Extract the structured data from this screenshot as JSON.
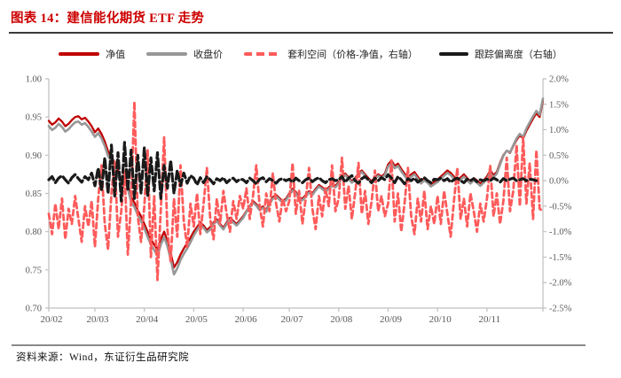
{
  "header": {
    "title": "图表 14：建信能化期货 ETF 走势"
  },
  "footer": {
    "source": "资料来源：Wind，东证衍生品研究院"
  },
  "legend": {
    "items": [
      {
        "label": "净值",
        "color": "#c00000",
        "style": "solid"
      },
      {
        "label": "收盘价",
        "color": "#979797",
        "style": "solid"
      },
      {
        "label": "套利空间（价格-净值，右轴）",
        "color": "#ff5b5b",
        "style": "dashed"
      },
      {
        "label": "跟踪偏离度（右轴）",
        "color": "#1a1a1a",
        "style": "solid"
      }
    ]
  },
  "chart_data": {
    "type": "line",
    "title": "建信能化期货 ETF 走势",
    "n_points": 151,
    "x_range_note": "2020-02 through early 2020-12, daily",
    "x_tick_labels": [
      "20/02",
      "20/03",
      "20/04",
      "20/05",
      "20/06",
      "20/07",
      "20/08",
      "20/09",
      "20/10",
      "20/11"
    ],
    "x_tick_index": [
      0,
      14,
      29,
      44,
      59,
      73,
      88,
      103,
      118,
      133
    ],
    "left_axis": {
      "min": 0.7,
      "max": 1.0,
      "tick_values": [
        1.0,
        0.95,
        0.9,
        0.85,
        0.8,
        0.75,
        0.7
      ],
      "tick_labels": [
        "1.00",
        "0.95",
        "0.90",
        "0.85",
        "0.80",
        "0.75",
        "0.70"
      ]
    },
    "right_axis": {
      "min": -2.5,
      "max": 2.0,
      "tick_values": [
        2.0,
        1.5,
        1.0,
        0.5,
        0.0,
        -0.5,
        -1.0,
        -1.5,
        -2.0,
        -2.5
      ],
      "tick_labels": [
        "2.0%",
        "1.5%",
        "1.0%",
        "0.5%",
        "0.0%",
        "-0.5%",
        "-1.0%",
        "-1.5%",
        "-2.0%",
        "-2.5%"
      ]
    },
    "grid": false,
    "legend_position": "top-center",
    "series": [
      {
        "name": "净值",
        "axis": "left",
        "color": "#c00000",
        "style": "solid",
        "width": 2.3,
        "values": [
          0.945,
          0.94,
          0.943,
          0.948,
          0.944,
          0.938,
          0.941,
          0.946,
          0.95,
          0.951,
          0.947,
          0.949,
          0.944,
          0.938,
          0.93,
          0.935,
          0.928,
          0.918,
          0.905,
          0.898,
          0.89,
          0.88,
          0.868,
          0.873,
          0.862,
          0.845,
          0.838,
          0.828,
          0.82,
          0.81,
          0.8,
          0.79,
          0.783,
          0.776,
          0.79,
          0.8,
          0.788,
          0.772,
          0.753,
          0.76,
          0.77,
          0.778,
          0.785,
          0.792,
          0.8,
          0.806,
          0.812,
          0.808,
          0.802,
          0.806,
          0.812,
          0.816,
          0.81,
          0.805,
          0.812,
          0.818,
          0.814,
          0.81,
          0.815,
          0.82,
          0.827,
          0.833,
          0.84,
          0.836,
          0.83,
          0.833,
          0.828,
          0.838,
          0.845,
          0.848,
          0.844,
          0.84,
          0.843,
          0.85,
          0.856,
          0.852,
          0.845,
          0.843,
          0.848,
          0.853,
          0.85,
          0.856,
          0.861,
          0.858,
          0.854,
          0.858,
          0.862,
          0.86,
          0.865,
          0.872,
          0.876,
          0.871,
          0.866,
          0.87,
          0.876,
          0.88,
          0.875,
          0.87,
          0.866,
          0.871,
          0.875,
          0.872,
          0.876,
          0.888,
          0.893,
          0.886,
          0.889,
          0.882,
          0.876,
          0.871,
          0.875,
          0.878,
          0.872,
          0.866,
          0.87,
          0.867,
          0.862,
          0.865,
          0.868,
          0.872,
          0.876,
          0.88,
          0.877,
          0.872,
          0.868,
          0.871,
          0.875,
          0.87,
          0.866,
          0.87,
          0.867,
          0.863,
          0.867,
          0.872,
          0.88,
          0.874,
          0.878,
          0.89,
          0.9,
          0.906,
          0.903,
          0.912,
          0.92,
          0.926,
          0.922,
          0.932,
          0.94,
          0.948,
          0.955,
          0.95,
          0.971
        ]
      },
      {
        "name": "收盘价",
        "axis": "left",
        "color": "#979797",
        "style": "solid",
        "width": 2.6,
        "values": [
          0.938,
          0.933,
          0.936,
          0.941,
          0.937,
          0.931,
          0.934,
          0.939,
          0.943,
          0.944,
          0.94,
          0.942,
          0.937,
          0.931,
          0.924,
          0.929,
          0.922,
          0.912,
          0.899,
          0.892,
          0.884,
          0.874,
          0.862,
          0.867,
          0.856,
          0.839,
          0.832,
          0.822,
          0.814,
          0.804,
          0.793,
          0.783,
          0.776,
          0.768,
          0.783,
          0.793,
          0.781,
          0.764,
          0.744,
          0.752,
          0.763,
          0.771,
          0.778,
          0.786,
          0.795,
          0.802,
          0.809,
          0.805,
          0.799,
          0.803,
          0.81,
          0.814,
          0.808,
          0.803,
          0.81,
          0.816,
          0.812,
          0.808,
          0.813,
          0.818,
          0.826,
          0.832,
          0.838,
          0.834,
          0.828,
          0.831,
          0.826,
          0.836,
          0.843,
          0.846,
          0.842,
          0.838,
          0.841,
          0.848,
          0.854,
          0.85,
          0.843,
          0.841,
          0.846,
          0.851,
          0.848,
          0.854,
          0.859,
          0.856,
          0.852,
          0.856,
          0.86,
          0.858,
          0.863,
          0.87,
          0.874,
          0.869,
          0.864,
          0.868,
          0.874,
          0.878,
          0.873,
          0.868,
          0.864,
          0.869,
          0.873,
          0.87,
          0.874,
          0.885,
          0.89,
          0.883,
          0.886,
          0.879,
          0.873,
          0.868,
          0.872,
          0.875,
          0.869,
          0.863,
          0.867,
          0.864,
          0.859,
          0.862,
          0.865,
          0.869,
          0.873,
          0.877,
          0.874,
          0.869,
          0.865,
          0.868,
          0.872,
          0.867,
          0.863,
          0.867,
          0.864,
          0.86,
          0.864,
          0.869,
          0.877,
          0.871,
          0.876,
          0.888,
          0.899,
          0.906,
          0.904,
          0.913,
          0.922,
          0.928,
          0.924,
          0.935,
          0.943,
          0.951,
          0.958,
          0.953,
          0.974
        ]
      },
      {
        "name": "套利空间（价格-净值，右轴）",
        "axis": "right",
        "color": "#ff5b5b",
        "style": "dashed",
        "width": 2.8,
        "values": [
          -0.65,
          -1.05,
          -0.45,
          -0.95,
          -0.35,
          -1.15,
          -0.55,
          -0.85,
          -0.3,
          -0.75,
          -1.2,
          -0.5,
          -0.9,
          -0.4,
          -1.3,
          -0.35,
          0.3,
          -0.85,
          -1.35,
          -0.25,
          0.4,
          -1.1,
          -0.6,
          0.2,
          -1.45,
          -0.4,
          1.55,
          -0.7,
          -1.2,
          -0.5,
          0.6,
          -1.5,
          -0.3,
          -1.95,
          -0.55,
          0.85,
          -0.95,
          -1.6,
          -0.35,
          -1.1,
          0.3,
          -0.8,
          -1.3,
          -0.45,
          -0.9,
          -0.25,
          -1.05,
          -0.45,
          0.25,
          -0.75,
          -1.15,
          -0.35,
          -0.85,
          -0.2,
          -0.65,
          -1.0,
          -0.4,
          -0.75,
          -0.3,
          -0.55,
          -0.15,
          -0.75,
          -0.3,
          0.3,
          -0.5,
          -0.9,
          -0.25,
          -0.6,
          0.15,
          -0.45,
          -0.8,
          -0.35,
          -0.6,
          -0.4,
          0.35,
          -0.65,
          -0.2,
          -0.85,
          -0.35,
          0.25,
          -0.55,
          -0.95,
          -0.3,
          -0.7,
          -0.15,
          -0.5,
          0.3,
          -0.6,
          -0.35,
          0.45,
          -0.55,
          -0.1,
          -0.75,
          -0.25,
          0.35,
          -0.65,
          -0.2,
          -0.85,
          -0.4,
          0.2,
          -0.6,
          -0.3,
          -0.7,
          -0.45,
          0.4,
          -0.8,
          -0.25,
          -1.0,
          -0.45,
          0.25,
          -0.7,
          -1.05,
          -0.35,
          -0.8,
          -0.2,
          -0.95,
          -0.5,
          -0.85,
          -0.3,
          -0.85,
          -0.2,
          -0.65,
          -1.1,
          -0.4,
          0.25,
          -0.75,
          -0.35,
          -0.9,
          -0.25,
          -0.6,
          -1.0,
          -0.45,
          -0.8,
          -0.35,
          0.3,
          -0.7,
          -0.25,
          -0.85,
          -0.4,
          0.45,
          -0.6,
          -0.2,
          0.7,
          -0.5,
          0.85,
          -0.45,
          0.35,
          -0.75,
          0.6,
          -0.55,
          -0.6
        ]
      },
      {
        "name": "跟踪偏离度（右轴）",
        "axis": "right",
        "color": "#1a1a1a",
        "style": "dashed-long",
        "width": 3.2,
        "values": [
          0.02,
          0.08,
          -0.04,
          0.05,
          0.1,
          0.02,
          -0.05,
          0.06,
          0.12,
          0.04,
          -0.03,
          0.08,
          0.02,
          0.15,
          -0.1,
          0.25,
          -0.2,
          0.45,
          -0.25,
          0.7,
          -0.3,
          0.55,
          -0.4,
          0.75,
          -0.2,
          0.6,
          -0.35,
          0.5,
          -0.25,
          0.65,
          -0.3,
          0.45,
          -0.2,
          0.55,
          -0.35,
          0.3,
          -0.15,
          0.4,
          -0.25,
          0.2,
          -0.1,
          0.15,
          -0.05,
          0.1,
          0.05,
          -0.08,
          0.06,
          -0.04,
          0.08,
          0.02,
          -0.06,
          0.04,
          0.0,
          0.06,
          -0.04,
          0.02,
          0.05,
          -0.02,
          0.03,
          0.02,
          -0.04,
          0.05,
          0.0,
          -0.06,
          0.03,
          0.06,
          -0.02,
          0.04,
          0.0,
          -0.05,
          0.02,
          0.04,
          0.0,
          0.03,
          -0.03,
          0.05,
          0.0,
          -0.04,
          0.02,
          0.05,
          -0.02,
          0.03,
          0.06,
          0.0,
          -0.04,
          0.02,
          0.04,
          0.0,
          0.02,
          0.08,
          -0.03,
          0.05,
          0.1,
          0.0,
          -0.05,
          0.04,
          0.08,
          0.02,
          -0.04,
          0.05,
          0.0,
          0.06,
          0.02,
          0.12,
          0.05,
          -0.04,
          0.08,
          0.02,
          -0.06,
          0.04,
          0.0,
          0.05,
          -0.03,
          0.02,
          0.06,
          0.0,
          -0.04,
          0.03,
          0.02,
          0.05,
          0.0,
          0.04,
          -0.03,
          0.02,
          0.05,
          0.0,
          -0.04,
          0.03,
          0.0,
          0.04,
          -0.02,
          0.02,
          0.0,
          0.03,
          0.0,
          0.05,
          0.02,
          -0.03,
          0.04,
          0.0,
          0.03,
          0.05,
          0.0,
          0.02,
          0.04,
          0.0,
          0.03,
          0.02,
          0.0
        ]
      }
    ],
    "axis_color": "#bfbfbf",
    "tick_label_color": "#595959"
  }
}
